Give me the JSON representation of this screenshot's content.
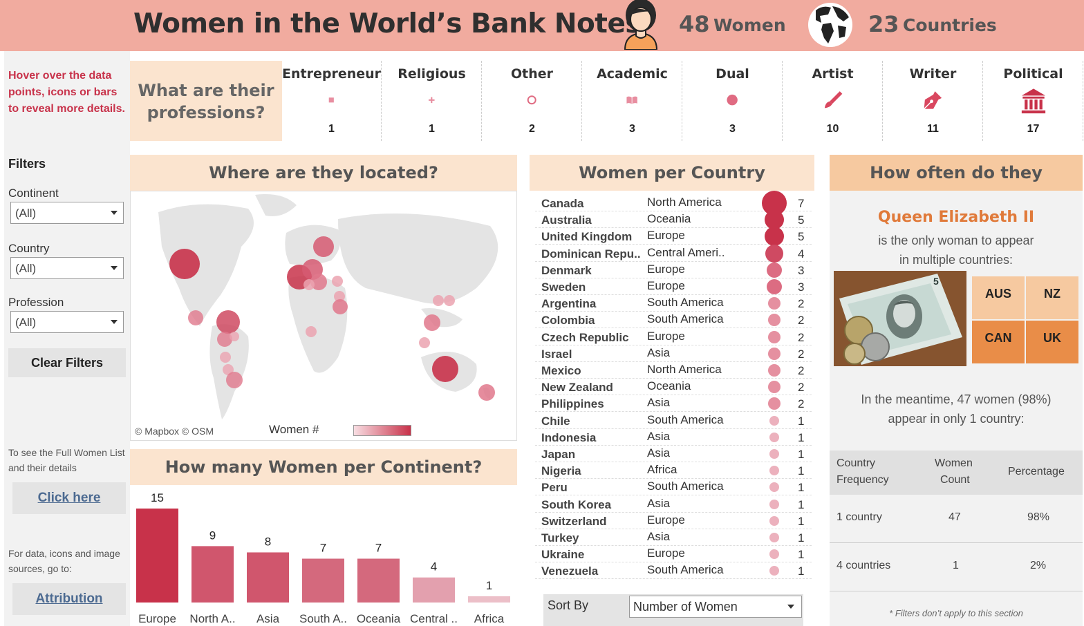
{
  "header": {
    "title": "Women in the World’s Bank Notes",
    "women_num": "48",
    "women_label": "Women",
    "countries_num": "23",
    "countries_label": "Countries"
  },
  "sidebar": {
    "hint": "Hover over the data points, icons or bars to reveal more details.",
    "filters_heading": "Filters",
    "continent_label": "Continent",
    "continent_value": "(All)",
    "country_label": "Country",
    "country_value": "(All)",
    "profession_label": "Profession",
    "profession_value": "(All)",
    "clear_label": "Clear Filters",
    "full_list_note": "To see the Full Women List and their details",
    "click_here": "Click here",
    "sources_note": "For data, icons and image sources, go to:",
    "attribution": "Attribution"
  },
  "professions": {
    "question": "What are their professions?",
    "items": [
      {
        "name": "Entrepreneur",
        "count": "1",
        "icon": "square-icon"
      },
      {
        "name": "Religious",
        "count": "1",
        "icon": "plus-icon"
      },
      {
        "name": "Other",
        "count": "2",
        "icon": "circle-outline-icon"
      },
      {
        "name": "Academic",
        "count": "3",
        "icon": "book-icon"
      },
      {
        "name": "Dual",
        "count": "3",
        "icon": "circle-icon"
      },
      {
        "name": "Artist",
        "count": "10",
        "icon": "paintbrush-icon"
      },
      {
        "name": "Writer",
        "count": "11",
        "icon": "pen-nib-icon"
      },
      {
        "name": "Political",
        "count": "17",
        "icon": "government-building-icon"
      }
    ]
  },
  "map": {
    "heading": "Where are they located?",
    "credit": "© Mapbox  © OSM",
    "legend_label": "Women #"
  },
  "continents": {
    "heading": "How many Women per Continent?"
  },
  "chart_data": {
    "type": "bar",
    "categories": [
      "Europe",
      "North A..",
      "Asia",
      "South A..",
      "Oceania",
      "Central ..",
      "Africa"
    ],
    "values": [
      15,
      9,
      8,
      7,
      7,
      4,
      1
    ],
    "ylim": [
      0,
      15
    ]
  },
  "countries": {
    "heading": "Women per Country",
    "rows": [
      {
        "name": "Canada",
        "continent": "North America",
        "count": 7
      },
      {
        "name": "Australia",
        "continent": "Oceania",
        "count": 5
      },
      {
        "name": "United Kingdom",
        "continent": "Europe",
        "count": 5
      },
      {
        "name": "Dominican Repu..",
        "continent": "Central Ameri..",
        "count": 4
      },
      {
        "name": "Denmark",
        "continent": "Europe",
        "count": 3
      },
      {
        "name": "Sweden",
        "continent": "Europe",
        "count": 3
      },
      {
        "name": "Argentina",
        "continent": "South America",
        "count": 2
      },
      {
        "name": "Colombia",
        "continent": "South America",
        "count": 2
      },
      {
        "name": "Czech Republic",
        "continent": "Europe",
        "count": 2
      },
      {
        "name": "Israel",
        "continent": "Asia",
        "count": 2
      },
      {
        "name": "Mexico",
        "continent": "North America",
        "count": 2
      },
      {
        "name": "New Zealand",
        "continent": "Oceania",
        "count": 2
      },
      {
        "name": "Philippines",
        "continent": "Asia",
        "count": 2
      },
      {
        "name": "Chile",
        "continent": "South America",
        "count": 1
      },
      {
        "name": "Indonesia",
        "continent": "Asia",
        "count": 1
      },
      {
        "name": "Japan",
        "continent": "Asia",
        "count": 1
      },
      {
        "name": "Nigeria",
        "continent": "Africa",
        "count": 1
      },
      {
        "name": "Peru",
        "continent": "South America",
        "count": 1
      },
      {
        "name": "South Korea",
        "continent": "Asia",
        "count": 1
      },
      {
        "name": "Switzerland",
        "continent": "Europe",
        "count": 1
      },
      {
        "name": "Turkey",
        "continent": "Asia",
        "count": 1
      },
      {
        "name": "Ukraine",
        "continent": "Europe",
        "count": 1
      },
      {
        "name": "Venezuela",
        "continent": "South America",
        "count": 1
      }
    ],
    "sort_label": "Sort By",
    "sort_value": "Number of Women"
  },
  "appearance": {
    "heading": "How often do they appear?*",
    "queen": "Queen Elizabeth II",
    "line1": "is the only woman to appear",
    "line2": "in multiple countries:",
    "tiles": [
      "AUS",
      "NZ",
      "CAN",
      "UK"
    ],
    "meantime1": "In the meantime, 47 women (98%)",
    "meantime2": "appear in only 1 country:",
    "col1a": "Country",
    "col1b": "Frequency",
    "col2a": "Women",
    "col2b": "Count",
    "col3": "Percentage",
    "rows": [
      {
        "freq": "1 country",
        "count": "47",
        "pct": "98%"
      },
      {
        "freq": "4 countries",
        "count": "1",
        "pct": "2%"
      }
    ],
    "footnote": "* Filters don’t apply to this section"
  },
  "colors": {
    "header_bg": "#f1ab9f",
    "accent": "#c8324a",
    "section_bg": "#fbe4cf",
    "queen_orange": "#e07a3a"
  }
}
